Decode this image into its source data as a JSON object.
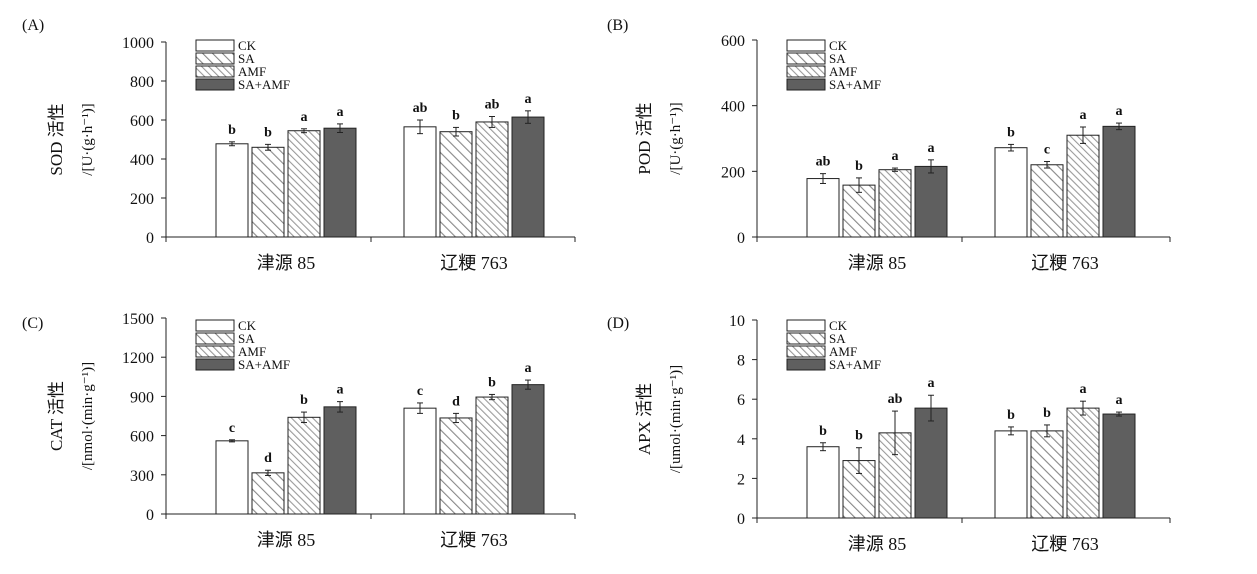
{
  "legend": [
    "CK",
    "SA",
    "AMF",
    "SA+AMF"
  ],
  "colors": {
    "ck": "#ffffff",
    "sa_hatch": "#888888",
    "amf_hatch": "#9a9a9a",
    "sa_amf": "#5f5f5f",
    "stroke": "#222222"
  },
  "chart_data": [
    {
      "type": "bar",
      "panel": "(A)",
      "ylabel": {
        "top": "SOD 活性",
        "unit": "/[U·(g·h⁻¹)]"
      },
      "ylim": [
        0,
        1000
      ],
      "yticks": [
        0,
        200,
        400,
        600,
        800,
        1000
      ],
      "categories": [
        "津源 85",
        "辽粳 763"
      ],
      "series": [
        {
          "name": "CK",
          "values": [
            478,
            565
          ],
          "errors": [
            10,
            35
          ],
          "letters": [
            "b",
            "ab"
          ]
        },
        {
          "name": "SA",
          "values": [
            460,
            540
          ],
          "errors": [
            15,
            22
          ],
          "letters": [
            "b",
            "b"
          ]
        },
        {
          "name": "AMF",
          "values": [
            545,
            590
          ],
          "errors": [
            10,
            28
          ],
          "letters": [
            "a",
            "ab"
          ]
        },
        {
          "name": "SA+AMF",
          "values": [
            558,
            615
          ],
          "errors": [
            22,
            32
          ],
          "letters": [
            "a",
            "a"
          ]
        }
      ]
    },
    {
      "type": "bar",
      "panel": "(B)",
      "ylabel": {
        "top": "POD 活性",
        "unit": "/[U·(g·h⁻¹)]"
      },
      "ylim": [
        0,
        600
      ],
      "yticks": [
        0,
        200,
        400,
        600
      ],
      "categories": [
        "津源 85",
        "辽粳 763"
      ],
      "series": [
        {
          "name": "CK",
          "values": [
            178,
            272
          ],
          "errors": [
            15,
            10
          ],
          "letters": [
            "ab",
            "b"
          ]
        },
        {
          "name": "SA",
          "values": [
            158,
            220
          ],
          "errors": [
            22,
            10
          ],
          "letters": [
            "b",
            "c"
          ]
        },
        {
          "name": "AMF",
          "values": [
            205,
            310
          ],
          "errors": [
            5,
            25
          ],
          "letters": [
            "a",
            "a"
          ]
        },
        {
          "name": "SA+AMF",
          "values": [
            215,
            337
          ],
          "errors": [
            20,
            10
          ],
          "letters": [
            "a",
            "a"
          ]
        }
      ]
    },
    {
      "type": "bar",
      "panel": "(C)",
      "ylabel": {
        "top": "CAT 活性",
        "unit": "/[nmol·(min·g⁻¹)]"
      },
      "ylim": [
        0,
        1500
      ],
      "yticks": [
        0,
        300,
        600,
        900,
        1200,
        1500
      ],
      "categories": [
        "津源 85",
        "辽粳 763"
      ],
      "series": [
        {
          "name": "CK",
          "values": [
            560,
            810
          ],
          "errors": [
            8,
            40
          ],
          "letters": [
            "c",
            "c"
          ]
        },
        {
          "name": "SA",
          "values": [
            315,
            735
          ],
          "errors": [
            20,
            35
          ],
          "letters": [
            "d",
            "d"
          ]
        },
        {
          "name": "AMF",
          "values": [
            740,
            895
          ],
          "errors": [
            40,
            20
          ],
          "letters": [
            "b",
            "b"
          ]
        },
        {
          "name": "SA+AMF",
          "values": [
            820,
            990
          ],
          "errors": [
            40,
            35
          ],
          "letters": [
            "a",
            "a"
          ]
        }
      ]
    },
    {
      "type": "bar",
      "panel": "(D)",
      "ylabel": {
        "top": "APX 活性",
        "unit": "/[umol·(min·g⁻¹)]"
      },
      "ylim": [
        0,
        10
      ],
      "yticks": [
        0,
        2,
        4,
        6,
        8,
        10
      ],
      "categories": [
        "津源 85",
        "辽粳 763"
      ],
      "series": [
        {
          "name": "CK",
          "values": [
            3.6,
            4.4
          ],
          "errors": [
            0.2,
            0.2
          ],
          "letters": [
            "b",
            "b"
          ]
        },
        {
          "name": "SA",
          "values": [
            2.9,
            4.4
          ],
          "errors": [
            0.65,
            0.3
          ],
          "letters": [
            "b",
            "b"
          ]
        },
        {
          "name": "AMF",
          "values": [
            4.3,
            5.55
          ],
          "errors": [
            1.1,
            0.35
          ],
          "letters": [
            "ab",
            "a"
          ]
        },
        {
          "name": "SA+AMF",
          "values": [
            5.55,
            5.25
          ],
          "errors": [
            0.65,
            0.1
          ],
          "letters": [
            "a",
            "a"
          ]
        }
      ]
    }
  ]
}
